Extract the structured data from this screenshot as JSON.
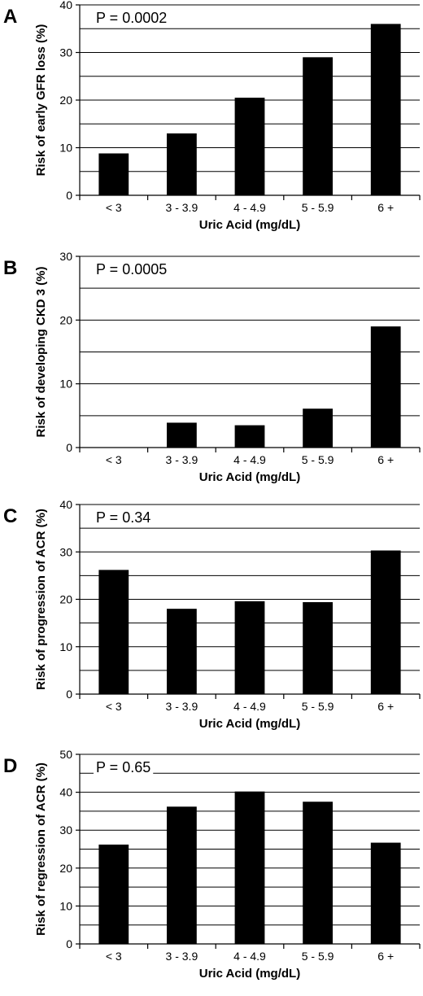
{
  "chart_data": [
    {
      "type": "bar",
      "panel": "A",
      "annotation": "P = 0.0002",
      "ylabel": "Risk of early GFR loss (%)",
      "xlabel": "Uric Acid (mg/dL)",
      "categories": [
        "< 3",
        "3 - 3.9",
        "4 - 4.9",
        "5 - 5.9",
        "6 +"
      ],
      "values": [
        8.8,
        13,
        20.5,
        29,
        36
      ],
      "ylim": [
        0,
        40
      ],
      "yticks": [
        0,
        10,
        20,
        30,
        40
      ],
      "grid_step": 5
    },
    {
      "type": "bar",
      "panel": "B",
      "annotation": "P = 0.0005",
      "ylabel": "Risk of developing CKD 3 (%)",
      "xlabel": "Uric Acid (mg/dL)",
      "categories": [
        "< 3",
        "3 - 3.9",
        "4 - 4.9",
        "5 - 5.9",
        "6 +"
      ],
      "values": [
        0,
        3.9,
        3.5,
        6.1,
        19
      ],
      "ylim": [
        0,
        30
      ],
      "yticks": [
        0,
        10,
        20,
        30
      ],
      "grid_step": 5
    },
    {
      "type": "bar",
      "panel": "C",
      "annotation": "P = 0.34",
      "ylabel": "Risk of progression of ACR (%)",
      "xlabel": "Uric Acid (mg/dL)",
      "categories": [
        "< 3",
        "3 - 3.9",
        "4 - 4.9",
        "5 - 5.9",
        "6 +"
      ],
      "values": [
        26.2,
        18,
        19.6,
        19.4,
        30.3
      ],
      "ylim": [
        0,
        40
      ],
      "yticks": [
        0,
        10,
        20,
        30,
        40
      ],
      "grid_step": 5
    },
    {
      "type": "bar",
      "panel": "D",
      "annotation": "P = 0.65",
      "ylabel": "Risk of regression of ACR (%)",
      "xlabel": "Uric Acid (mg/dL)",
      "categories": [
        "< 3",
        "3 - 3.9",
        "4 - 4.9",
        "5 - 5.9",
        "6 +"
      ],
      "values": [
        26.2,
        36.2,
        40.2,
        37.5,
        26.7
      ],
      "ylim": [
        0,
        50
      ],
      "yticks": [
        0,
        10,
        20,
        30,
        40,
        50
      ],
      "grid_step": 5
    }
  ]
}
